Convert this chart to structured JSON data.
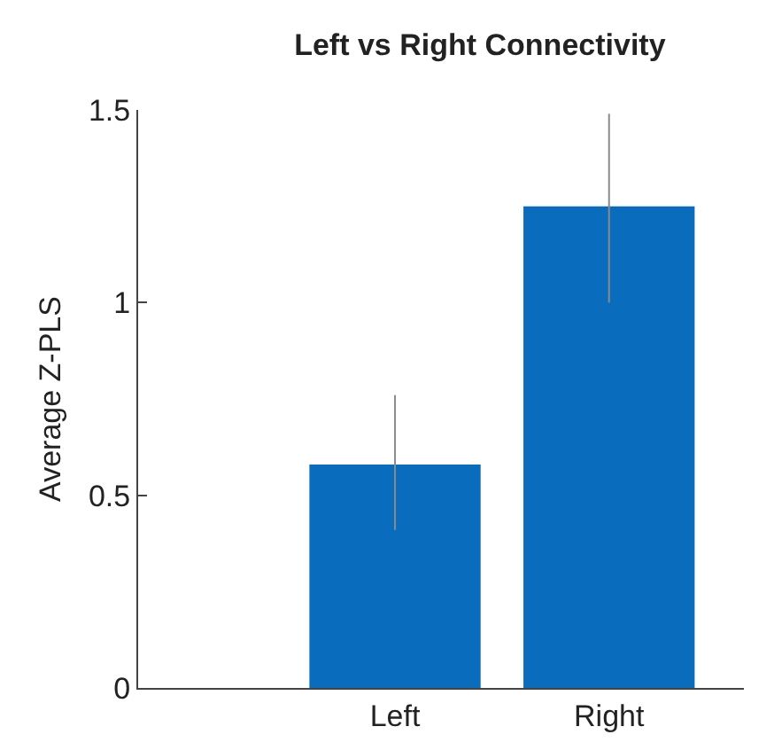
{
  "chart_data": {
    "type": "bar",
    "title": "Left vs Right Connectivity",
    "ylabel": "Average Z-PLS",
    "categories": [
      "Left",
      "Right"
    ],
    "values": [
      0.58,
      1.25
    ],
    "errors": [
      [
        0.41,
        0.76
      ],
      [
        1.0,
        1.49
      ]
    ],
    "color": "#0a6cbc",
    "ylim": [
      0,
      1.5
    ],
    "yticks": [
      0,
      0.5,
      1,
      1.5
    ],
    "grid": false
  }
}
